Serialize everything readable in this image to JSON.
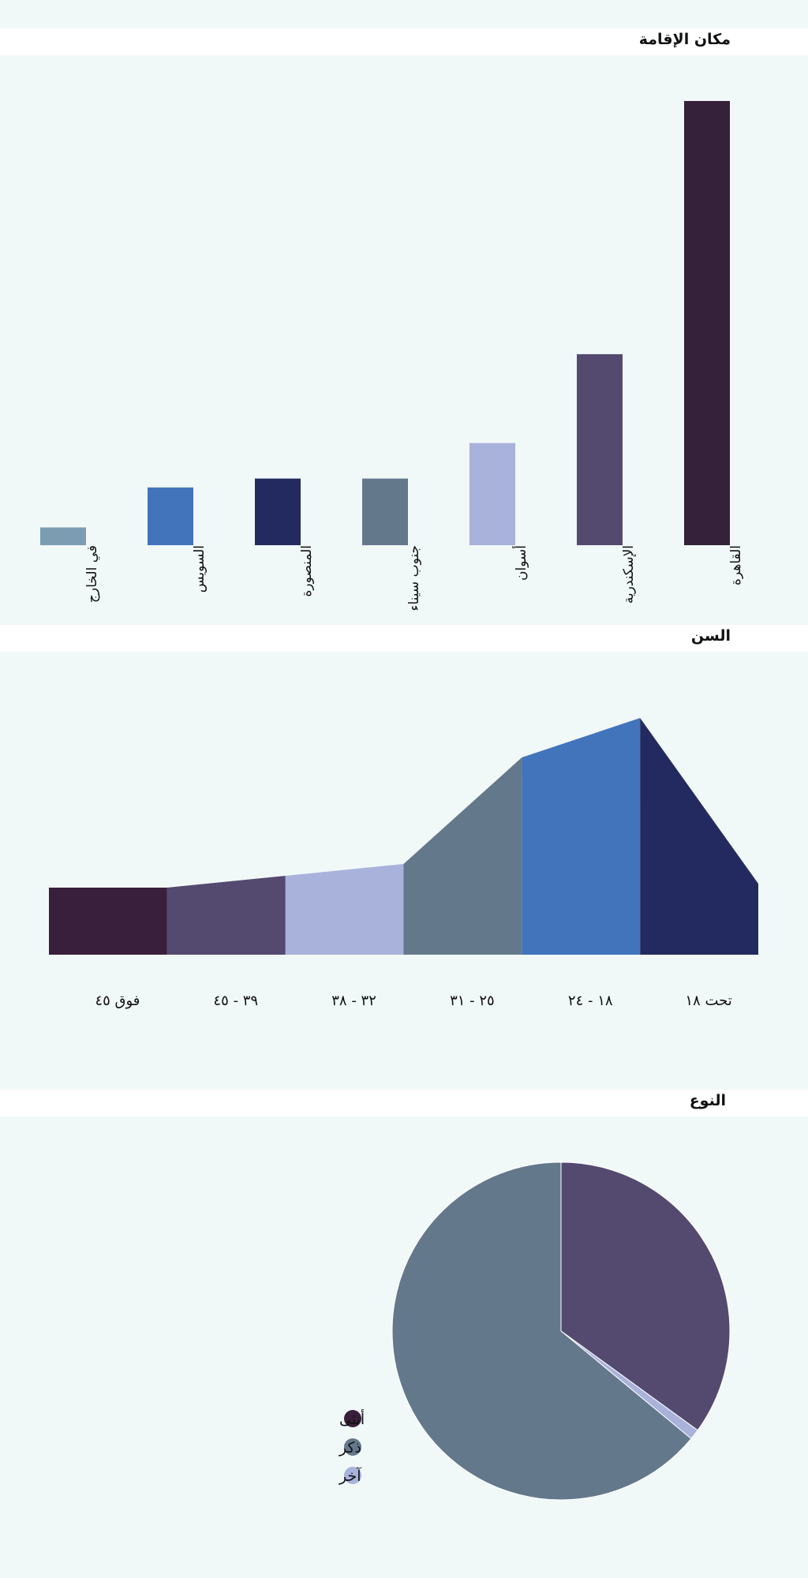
{
  "sections": {
    "residence_title": "مكان الإقامة",
    "age_title": "السن",
    "gender_title": "النوع"
  },
  "chart_data": [
    {
      "type": "bar",
      "title": "مكان الإقامة",
      "categories": [
        "القاهرة",
        "الإسكندرية",
        "أسوان",
        "جنوب سيناء",
        "المنصورة",
        "السويس",
        "في الخارج"
      ],
      "values": [
        100,
        43,
        23,
        15,
        15,
        13,
        4
      ],
      "colors": [
        "#36213b",
        "#544a70",
        "#a8b2db",
        "#64788c",
        "#222a5f",
        "#4174bb",
        "#7c9db1"
      ],
      "ylim": [
        0,
        100
      ],
      "grid": false
    },
    {
      "type": "area",
      "title": "السن",
      "categories": [
        "تحت ١٨",
        "١٨ - ٢٤",
        "٢٥ - ٣١",
        "٣٢ - ٣٨",
        "٣٩ - ٤٥",
        "فوق ٤٥"
      ],
      "values": [
        18,
        60,
        50,
        23,
        20,
        17
      ],
      "colors": [
        "#222a5f",
        "#4174bb",
        "#64788c",
        "#a8b2db",
        "#544a70",
        "#391f3c"
      ],
      "ylim": [
        0,
        65
      ],
      "grid": false
    },
    {
      "type": "pie",
      "title": "النوع",
      "series": [
        {
          "name": "أنثى",
          "value": 35,
          "color": "#544a70"
        },
        {
          "name": "آخر",
          "value": 1,
          "color": "#a8b2db"
        },
        {
          "name": "ذكر",
          "value": 64,
          "color": "#64788c"
        }
      ],
      "legend": [
        {
          "label": "أنثى",
          "color": "#391f3c"
        },
        {
          "label": "ذكر",
          "color": "#64788c"
        },
        {
          "label": "آخر",
          "color": "#a8b2db"
        }
      ],
      "legend_position": "bottom-left"
    }
  ]
}
